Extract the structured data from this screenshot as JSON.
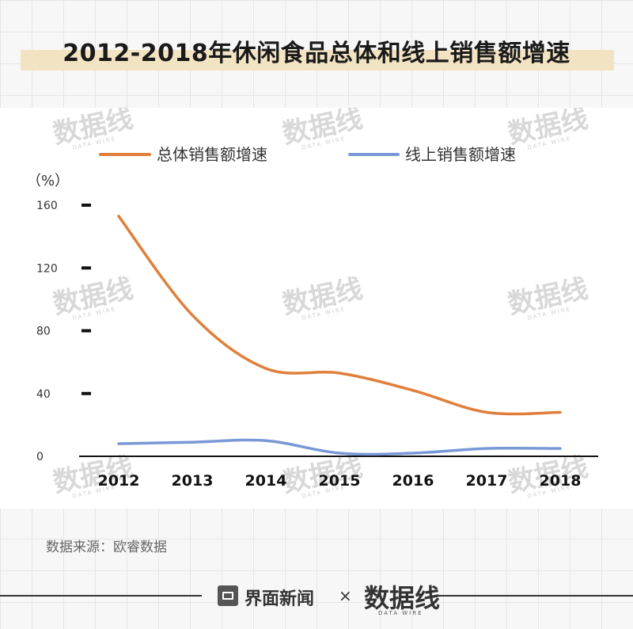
{
  "title": "2012-2018年休闲食品总体和线上销售额增速",
  "unit_label": "（%）",
  "source": "数据来源：欧睿数据",
  "watermark": {
    "text": "数据线",
    "sub": "DATA WIRE"
  },
  "footer": {
    "brand": "界面新闻",
    "times": "×",
    "partner": "数据线",
    "partner_sub": "DATA WIRE"
  },
  "colors": {
    "total": "#e07f3c",
    "online": "#7898d6",
    "axis": "#111111",
    "title_highlight": "#f2e3c2"
  },
  "chart_data": {
    "type": "line",
    "title": "2012-2018年休闲食品总体和线上销售额增速",
    "ylabel": "（%）",
    "xlabel": "",
    "categories": [
      "2012",
      "2013",
      "2014",
      "2015",
      "2016",
      "2017",
      "2018"
    ],
    "yticks": [
      0,
      40,
      80,
      120,
      160
    ],
    "ylim": [
      0,
      160
    ],
    "legend_position": "top",
    "grid": false,
    "series": [
      {
        "name": "总体销售额增速",
        "color": "#e07f3c",
        "values": [
          153,
          90,
          56,
          53,
          42,
          28,
          28
        ]
      },
      {
        "name": "线上销售额增速",
        "color": "#7898d6",
        "values": [
          8,
          9,
          10,
          2,
          2,
          5,
          5
        ]
      }
    ]
  }
}
